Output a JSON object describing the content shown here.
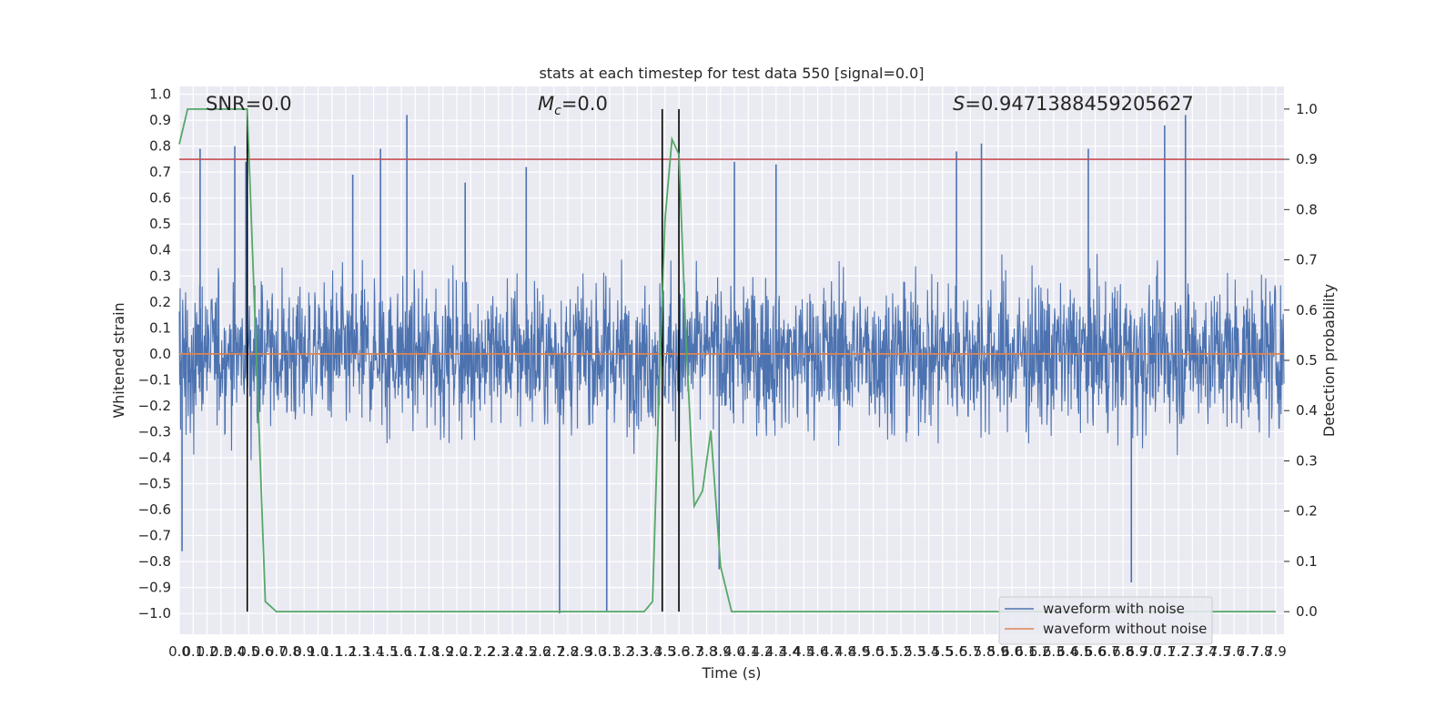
{
  "chart_data": {
    "type": "line",
    "title": "stats at each timestep for test data 550 [signal=0.0]",
    "xlabel": "Time (s)",
    "ylabel": "Whitened strain",
    "y2label": "Detection probability",
    "xlim": [
      0,
      7.96
    ],
    "ylim": [
      -1.08,
      1.03
    ],
    "y2lim": [
      -0.045,
      1.045
    ],
    "x_ticks": [
      "0.0",
      "0.1",
      "0.2",
      "0.3",
      "0.4",
      "0.5",
      "0.6",
      "0.7",
      "0.8",
      "0.9",
      "1.0",
      "1.1",
      "1.2",
      "1.3",
      "1.4",
      "1.5",
      "1.6",
      "1.7",
      "1.8",
      "1.9",
      "2.0",
      "2.1",
      "2.2",
      "2.3",
      "2.4",
      "2.5",
      "2.6",
      "2.7",
      "2.8",
      "2.9",
      "3.0",
      "3.1",
      "3.2",
      "3.3",
      "3.4",
      "3.5",
      "3.6",
      "3.7",
      "3.8",
      "3.9",
      "4.0",
      "4.1",
      "4.2",
      "4.3",
      "4.4",
      "4.5",
      "4.6",
      "4.7",
      "4.8",
      "4.9",
      "5.0",
      "5.1",
      "5.2",
      "5.3",
      "5.4",
      "5.5",
      "5.6",
      "5.7",
      "5.8",
      "5.9",
      "6.0",
      "6.1",
      "6.2",
      "6.3",
      "6.4",
      "6.5",
      "6.6",
      "6.7",
      "6.8",
      "6.9",
      "7.0",
      "7.1",
      "7.2",
      "7.3",
      "7.4",
      "7.5",
      "7.6",
      "7.7",
      "7.8",
      "7.9"
    ],
    "y_ticks": [
      "1.0",
      "0.9",
      "0.8",
      "0.7",
      "0.6",
      "0.5",
      "0.4",
      "0.3",
      "0.2",
      "0.1",
      "0.0",
      "−0.1",
      "−0.2",
      "−0.3",
      "−0.4",
      "−0.5",
      "−0.6",
      "−0.7",
      "−0.8",
      "−0.9",
      "−1.0"
    ],
    "y2_ticks": [
      "1.0",
      "0.9",
      "0.8",
      "0.7",
      "0.6",
      "0.5",
      "0.4",
      "0.3",
      "0.2",
      "0.1",
      "0.0"
    ],
    "annotations": {
      "snr": "SNR=0.0",
      "mc_symbol": "M",
      "mc_sub": "c",
      "mc_value": "=0.0",
      "s_symbol": "S",
      "s_value": "=0.9471388459205627"
    },
    "threshold_line": {
      "axis": "y2",
      "value": 0.9,
      "color": "#c44e52"
    },
    "vertical_lines": [
      0.49,
      3.48,
      3.6
    ],
    "series": [
      {
        "name": "waveform with noise",
        "color": "#4c72b0",
        "kind": "noise",
        "spikes": [
          [
            0.02,
            -0.76
          ],
          [
            0.15,
            0.79
          ],
          [
            0.4,
            0.8
          ],
          [
            0.48,
            0.74
          ],
          [
            1.64,
            0.92
          ],
          [
            2.74,
            -1.0
          ],
          [
            3.08,
            -0.99
          ],
          [
            7.25,
            0.92
          ],
          [
            6.86,
            -0.88
          ],
          [
            2.06,
            0.66
          ],
          [
            2.5,
            0.72
          ],
          [
            5.78,
            0.81
          ],
          [
            5.6,
            0.78
          ],
          [
            4.0,
            0.74
          ],
          [
            3.89,
            -0.83
          ],
          [
            4.3,
            0.73
          ],
          [
            6.55,
            0.79
          ],
          [
            7.1,
            0.88
          ],
          [
            1.45,
            0.79
          ],
          [
            1.25,
            0.69
          ]
        ]
      },
      {
        "name": "waveform without noise",
        "color": "#dd8452",
        "kind": "flat",
        "value": 0.0
      },
      {
        "name": "detection probability",
        "color": "#55a868",
        "axis": "y2",
        "x": [
          0.0,
          0.06,
          0.12,
          0.3,
          0.49,
          0.55,
          0.62,
          0.7,
          1.0,
          2.0,
          3.0,
          3.35,
          3.41,
          3.45,
          3.5,
          3.55,
          3.6,
          3.65,
          3.71,
          3.77,
          3.83,
          3.9,
          3.98,
          4.05,
          5.0,
          6.0,
          7.0,
          7.9
        ],
        "y": [
          0.93,
          1.0,
          1.0,
          1.0,
          1.0,
          0.55,
          0.02,
          0.0,
          0.0,
          0.0,
          0.0,
          0.0,
          0.02,
          0.38,
          0.78,
          0.94,
          0.91,
          0.55,
          0.21,
          0.24,
          0.36,
          0.09,
          0.0,
          0.0,
          0.0,
          0.0,
          0.0,
          0.0
        ]
      }
    ],
    "legend": {
      "placement": "lower-right",
      "entries": [
        {
          "label": "waveform with noise",
          "color": "#4c72b0"
        },
        {
          "label": "waveform without noise",
          "color": "#dd8452"
        }
      ]
    },
    "style": {
      "axes_bg": "#eaeaf2",
      "grid_color": "#ffffff",
      "grid": true
    }
  }
}
